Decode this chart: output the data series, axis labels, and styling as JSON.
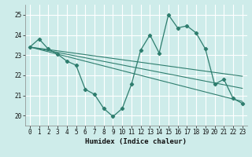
{
  "xlabel": "Humidex (Indice chaleur)",
  "xlim": [
    -0.5,
    23.5
  ],
  "ylim": [
    19.5,
    25.5
  ],
  "yticks": [
    20,
    21,
    22,
    23,
    24,
    25
  ],
  "xticks": [
    0,
    1,
    2,
    3,
    4,
    5,
    6,
    7,
    8,
    9,
    10,
    11,
    12,
    13,
    14,
    15,
    16,
    17,
    18,
    19,
    20,
    21,
    22,
    23
  ],
  "bg_color": "#ceecea",
  "grid_color": "#ffffff",
  "line_color": "#2e7d6e",
  "main_x": [
    0,
    1,
    2,
    3,
    4,
    5,
    6,
    7,
    8,
    9,
    10,
    11,
    12,
    13,
    14,
    15,
    16,
    17,
    18,
    19,
    20,
    21,
    22,
    23
  ],
  "main_y": [
    23.4,
    23.8,
    23.3,
    23.05,
    22.7,
    22.5,
    21.3,
    21.05,
    20.35,
    19.95,
    20.35,
    21.55,
    23.25,
    24.0,
    23.1,
    25.0,
    24.35,
    24.45,
    24.1,
    23.3,
    21.55,
    21.8,
    20.85,
    20.6
  ],
  "trend1_x": [
    0,
    23
  ],
  "trend1_y": [
    23.4,
    20.7
  ],
  "trend2_x": [
    0,
    23
  ],
  "trend2_y": [
    23.4,
    21.35
  ],
  "trend3_x": [
    0,
    23
  ],
  "trend3_y": [
    23.4,
    21.95
  ]
}
